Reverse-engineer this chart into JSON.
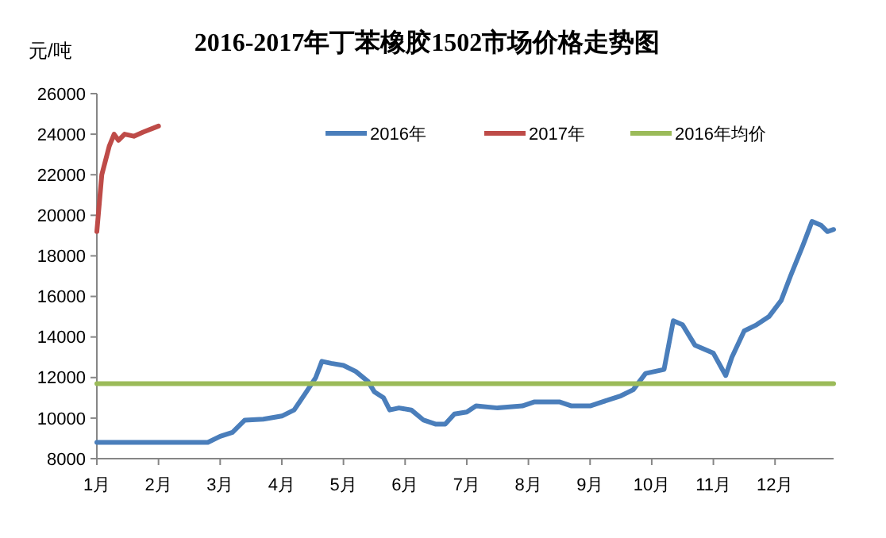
{
  "chart_data": {
    "type": "line",
    "title": "2016-2017年丁苯橡胶1502市场价格走势图",
    "ylabel": "元/吨",
    "xlim": [
      1,
      12.95
    ],
    "xticks": [
      {
        "value": 1,
        "label": "1月"
      },
      {
        "value": 2,
        "label": "2月"
      },
      {
        "value": 3,
        "label": "3月"
      },
      {
        "value": 4,
        "label": "4月"
      },
      {
        "value": 5,
        "label": "5月"
      },
      {
        "value": 6,
        "label": "6月"
      },
      {
        "value": 7,
        "label": "7月"
      },
      {
        "value": 8,
        "label": "8月"
      },
      {
        "value": 9,
        "label": "9月"
      },
      {
        "value": 10,
        "label": "10月"
      },
      {
        "value": 11,
        "label": "11月"
      },
      {
        "value": 12,
        "label": "12月"
      }
    ],
    "ylim": [
      8000,
      26000
    ],
    "yticks": [
      8000,
      10000,
      12000,
      14000,
      16000,
      18000,
      20000,
      22000,
      24000,
      26000
    ],
    "grid": false,
    "legend": "top",
    "marker": "none",
    "line_style": "solid",
    "series": [
      {
        "name": "2016年",
        "color": "#4a7ebb",
        "x": [
          1,
          2.8,
          3.0,
          3.2,
          3.4,
          3.7,
          4.0,
          4.2,
          4.4,
          4.55,
          4.65,
          4.8,
          5.0,
          5.2,
          5.4,
          5.5,
          5.65,
          5.75,
          5.9,
          6.1,
          6.3,
          6.5,
          6.65,
          6.8,
          7.0,
          7.15,
          7.5,
          7.9,
          8.1,
          8.5,
          8.7,
          9.0,
          9.3,
          9.5,
          9.7,
          9.9,
          10.2,
          10.35,
          10.5,
          10.7,
          11.0,
          11.2,
          11.3,
          11.5,
          11.7,
          11.9,
          12.1,
          12.25,
          12.45,
          12.6,
          12.75,
          12.85,
          12.95
        ],
        "values": [
          8800,
          8800,
          9100,
          9300,
          9900,
          9950,
          10100,
          10400,
          11300,
          12000,
          12800,
          12700,
          12600,
          12300,
          11800,
          11300,
          11000,
          10400,
          10500,
          10400,
          9900,
          9700,
          9700,
          10200,
          10300,
          10600,
          10500,
          10600,
          10800,
          10800,
          10600,
          10600,
          10900,
          11100,
          11400,
          12200,
          12400,
          14800,
          14600,
          13600,
          13200,
          12100,
          13000,
          14300,
          14600,
          15000,
          15800,
          17000,
          18500,
          19700,
          19500,
          19200,
          19300
        ]
      },
      {
        "name": "2017年",
        "color": "#be4b48",
        "x": [
          1.0,
          1.08,
          1.2,
          1.28,
          1.35,
          1.45,
          1.6,
          1.75,
          2.0
        ],
        "values": [
          19200,
          22000,
          23400,
          24000,
          23700,
          24000,
          23900,
          24100,
          24400
        ]
      },
      {
        "name": "2016年均价",
        "color": "#9bbb59",
        "x": [
          1,
          12.95
        ],
        "values": [
          11700,
          11700
        ]
      }
    ]
  }
}
